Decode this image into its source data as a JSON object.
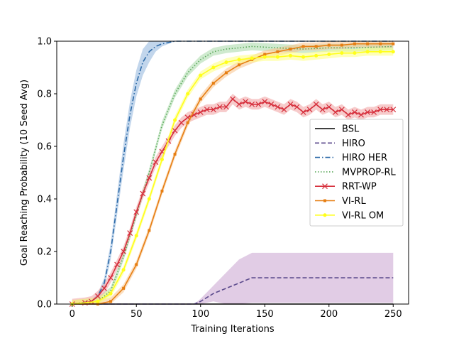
{
  "chart_data": {
    "type": "line",
    "xlabel": "Training Iterations",
    "ylabel": "Goal Reaching Probability (10 Seed Avg)",
    "xlim": [
      -12,
      262
    ],
    "ylim": [
      0,
      1.0
    ],
    "xticks": [
      "0",
      "50",
      "100",
      "150",
      "200",
      "250"
    ],
    "yticks": [
      "0.0",
      "0.2",
      "0.4",
      "0.6",
      "0.8",
      "1.0"
    ],
    "grid": false,
    "legend_position": "center-right",
    "series": [
      {
        "name": "BSL",
        "color": "#000000",
        "style": "solid",
        "marker": "none",
        "x": [
          0,
          50,
          100,
          150,
          200,
          250
        ],
        "y": [
          0.0,
          0.0,
          0.0,
          0.0,
          0.0,
          0.0
        ],
        "band": 0.0
      },
      {
        "name": "HIRO",
        "color": "#5b4a8c",
        "style": "dashed",
        "marker": "none",
        "band_color": "#c9a3cf",
        "x": [
          0,
          80,
          95,
          100,
          110,
          120,
          130,
          140,
          150,
          250
        ],
        "y": [
          0.0,
          0.0,
          0.0,
          0.01,
          0.04,
          0.06,
          0.08,
          0.1,
          0.1,
          0.1
        ],
        "band": [
          0.0,
          0.0,
          0.0,
          0.01,
          0.03,
          0.06,
          0.09,
          0.095,
          0.095,
          0.095
        ]
      },
      {
        "name": "HIRO HER",
        "color": "#2c6aa8",
        "style": "dashdot",
        "marker": "none",
        "band_color": "#8fb4dc",
        "x": [
          0,
          15,
          20,
          25,
          30,
          35,
          40,
          45,
          50,
          55,
          60,
          65,
          70,
          75,
          80,
          90,
          100,
          250
        ],
        "y": [
          0.0,
          0.01,
          0.03,
          0.08,
          0.2,
          0.38,
          0.56,
          0.72,
          0.84,
          0.92,
          0.96,
          0.98,
          0.99,
          0.995,
          1.0,
          1.0,
          1.0,
          1.0
        ],
        "band": [
          0.0,
          0.005,
          0.01,
          0.02,
          0.03,
          0.04,
          0.05,
          0.05,
          0.05,
          0.05,
          0.04,
          0.02,
          0.01,
          0.005,
          0.0,
          0.0,
          0.0,
          0.0
        ]
      },
      {
        "name": "MVPROP-RL",
        "color": "#5daa5d",
        "style": "dotted",
        "marker": "none",
        "band_color": "#a8d8a8",
        "x": [
          0,
          20,
          30,
          40,
          50,
          60,
          70,
          80,
          90,
          100,
          110,
          120,
          130,
          140,
          160,
          180,
          200,
          220,
          250
        ],
        "y": [
          0.0,
          0.01,
          0.05,
          0.18,
          0.34,
          0.5,
          0.68,
          0.8,
          0.88,
          0.93,
          0.96,
          0.97,
          0.975,
          0.98,
          0.975,
          0.97,
          0.975,
          0.975,
          0.98
        ],
        "band": 0.015
      },
      {
        "name": "RRT-WP",
        "color": "#d62f3c",
        "style": "solid",
        "marker": "x",
        "band_color": "#f0a0a0",
        "x": [
          0,
          10,
          15,
          20,
          25,
          30,
          35,
          40,
          45,
          50,
          55,
          60,
          65,
          70,
          75,
          80,
          85,
          90,
          95,
          100,
          105,
          110,
          115,
          120,
          125,
          130,
          135,
          140,
          145,
          150,
          155,
          160,
          165,
          170,
          175,
          180,
          185,
          190,
          195,
          200,
          205,
          210,
          215,
          220,
          225,
          230,
          235,
          240,
          245,
          250
        ],
        "y": [
          0.0,
          0.005,
          0.01,
          0.03,
          0.06,
          0.1,
          0.15,
          0.2,
          0.27,
          0.35,
          0.42,
          0.48,
          0.54,
          0.58,
          0.62,
          0.66,
          0.69,
          0.71,
          0.72,
          0.73,
          0.74,
          0.74,
          0.75,
          0.75,
          0.78,
          0.76,
          0.77,
          0.76,
          0.76,
          0.77,
          0.76,
          0.75,
          0.74,
          0.76,
          0.75,
          0.73,
          0.74,
          0.76,
          0.74,
          0.75,
          0.73,
          0.74,
          0.72,
          0.73,
          0.72,
          0.73,
          0.73,
          0.74,
          0.74,
          0.74
        ],
        "band": 0.02
      },
      {
        "name": "VI-RL",
        "color": "#e67e12",
        "style": "solid",
        "marker": "square",
        "band_color": "#f7c38c",
        "x": [
          0,
          20,
          30,
          40,
          50,
          60,
          70,
          80,
          90,
          100,
          110,
          120,
          130,
          140,
          150,
          160,
          170,
          180,
          190,
          200,
          210,
          220,
          230,
          240,
          250
        ],
        "y": [
          0.0,
          0.0,
          0.01,
          0.06,
          0.15,
          0.28,
          0.43,
          0.57,
          0.69,
          0.78,
          0.84,
          0.88,
          0.91,
          0.93,
          0.95,
          0.96,
          0.97,
          0.98,
          0.98,
          0.985,
          0.985,
          0.99,
          0.99,
          0.99,
          0.99
        ],
        "band": 0.015
      },
      {
        "name": "VI-RL OM",
        "color": "#ffff1a",
        "style": "solid",
        "marker": "circle",
        "band_color": "#ffff80",
        "x": [
          0,
          20,
          30,
          40,
          50,
          60,
          70,
          80,
          90,
          100,
          110,
          120,
          130,
          140,
          150,
          160,
          170,
          180,
          190,
          200,
          210,
          220,
          230,
          240,
          250
        ],
        "y": [
          0.0,
          0.01,
          0.04,
          0.13,
          0.26,
          0.4,
          0.55,
          0.7,
          0.8,
          0.87,
          0.9,
          0.92,
          0.93,
          0.935,
          0.94,
          0.94,
          0.945,
          0.94,
          0.945,
          0.95,
          0.955,
          0.955,
          0.96,
          0.96,
          0.96
        ],
        "band": 0.015
      }
    ]
  }
}
